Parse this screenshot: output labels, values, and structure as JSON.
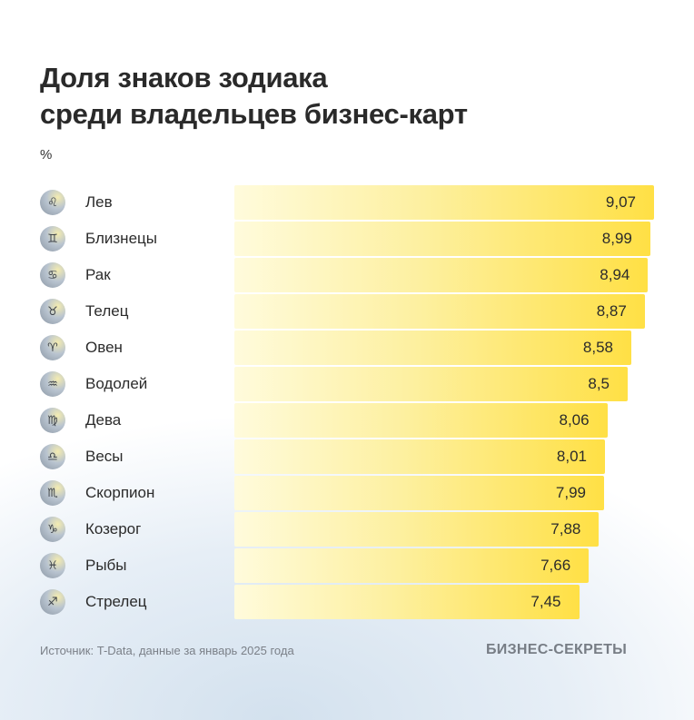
{
  "chart_data": {
    "type": "bar",
    "orientation": "horizontal",
    "title": "Доля знаков зодиака среди владельцев бизнес-карт",
    "title_lines": [
      "Доля знаков зодиака",
      "среди владельцев бизнес-карт"
    ],
    "unit": "%",
    "categories": [
      "Лев",
      "Близнецы",
      "Рак",
      "Телец",
      "Овен",
      "Водолей",
      "Дева",
      "Весы",
      "Скорпион",
      "Козерог",
      "Рыбы",
      "Стрелец"
    ],
    "icons": [
      "♌",
      "♊",
      "♋",
      "♉",
      "♈",
      "♒",
      "♍",
      "♎",
      "♏",
      "♑",
      "♓",
      "♐"
    ],
    "values": [
      9.07,
      8.99,
      8.94,
      8.87,
      8.58,
      8.5,
      8.06,
      8.01,
      7.99,
      7.88,
      7.66,
      7.45
    ],
    "value_labels": [
      "9,07",
      "8,99",
      "8,94",
      "8,87",
      "8,58",
      "8,5",
      "8,06",
      "8,01",
      "7,99",
      "7,88",
      "7,66",
      "7,45"
    ],
    "xlim": [
      0,
      9.07
    ],
    "grid": false,
    "bar_color": "#ffe045"
  },
  "footer": {
    "source": "Источник: T-Data, данные за январь 2025 года",
    "brand": "БИЗНЕС-СЕКРЕТЫ"
  }
}
